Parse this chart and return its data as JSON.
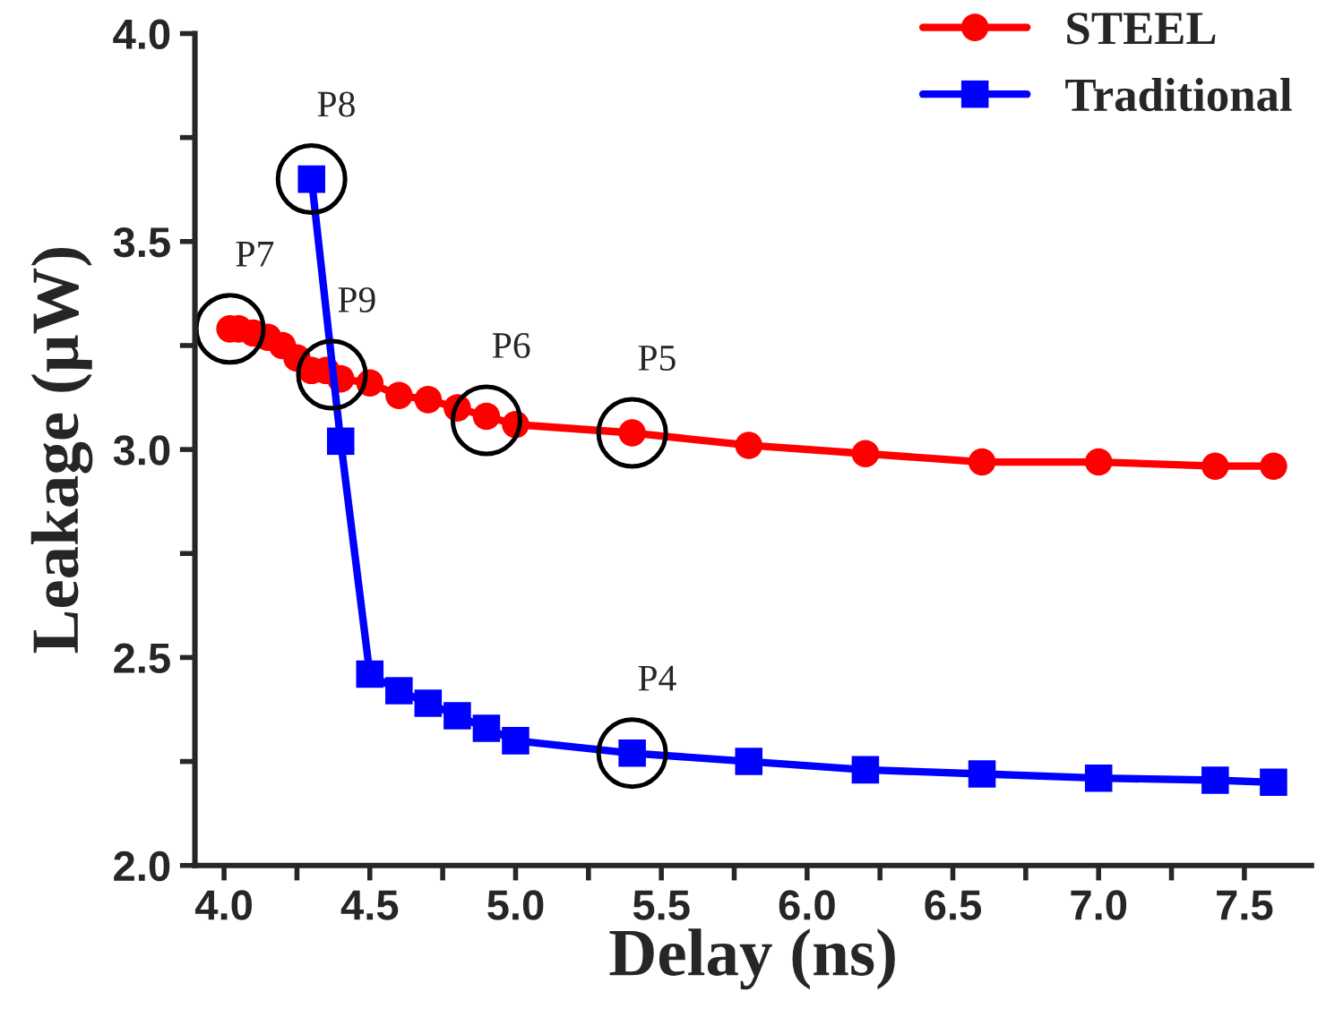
{
  "chart_data": {
    "type": "line",
    "xlabel": "Delay (ns)",
    "ylabel": "Leakage (μW)",
    "series": [
      {
        "name": "STEEL",
        "color": "#ff0000",
        "marker": "circle",
        "x": [
          4.02,
          4.05,
          4.1,
          4.15,
          4.2,
          4.25,
          4.3,
          4.35,
          4.4,
          4.5,
          4.6,
          4.7,
          4.8,
          4.9,
          5.0,
          5.4,
          5.8,
          6.2,
          6.6,
          7.0,
          7.4,
          7.6
        ],
        "values": [
          3.29,
          3.29,
          3.28,
          3.27,
          3.25,
          3.22,
          3.19,
          3.19,
          3.17,
          3.16,
          3.13,
          3.12,
          3.1,
          3.08,
          3.06,
          3.04,
          3.01,
          2.99,
          2.97,
          2.97,
          2.96,
          2.96
        ]
      },
      {
        "name": "Traditional",
        "color": "#0000ff",
        "marker": "square",
        "x": [
          4.3,
          4.4,
          4.5,
          4.6,
          4.7,
          4.8,
          4.9,
          5.0,
          5.4,
          5.8,
          6.2,
          6.6,
          7.0,
          7.4,
          7.6
        ],
        "values": [
          3.65,
          3.02,
          2.46,
          2.42,
          2.39,
          2.36,
          2.33,
          2.3,
          2.27,
          2.25,
          2.23,
          2.22,
          2.21,
          2.205,
          2.2
        ]
      }
    ],
    "annotations": [
      {
        "text": "P7",
        "x": 4.02,
        "y": 3.29
      },
      {
        "text": "P8",
        "x": 4.3,
        "y": 3.65
      },
      {
        "text": "P9",
        "x": 4.37,
        "y": 3.18
      },
      {
        "text": "P6",
        "x": 4.9,
        "y": 3.07
      },
      {
        "text": "P5",
        "x": 5.4,
        "y": 3.04
      },
      {
        "text": "P4",
        "x": 5.4,
        "y": 2.27
      }
    ],
    "xlim": [
      3.9,
      7.73
    ],
    "xticks": [
      {
        "value": 4.0,
        "label": "4.0"
      },
      4.5,
      {
        "value": 5.0,
        "label": "5.0"
      },
      5.5,
      {
        "value": 6.0,
        "label": "6.0"
      },
      6.5,
      {
        "value": 7.0,
        "label": "7.0"
      },
      7.5
    ],
    "ylim": [
      2.0,
      4.0
    ],
    "yticks": [
      {
        "value": 2.0,
        "label": "2.0"
      },
      2.5,
      {
        "value": 3.0,
        "label": "3.0"
      },
      3.5,
      {
        "value": 4.0,
        "label": "4.0"
      }
    ],
    "grid": false,
    "legend": "top right",
    "line_style": "solid"
  }
}
